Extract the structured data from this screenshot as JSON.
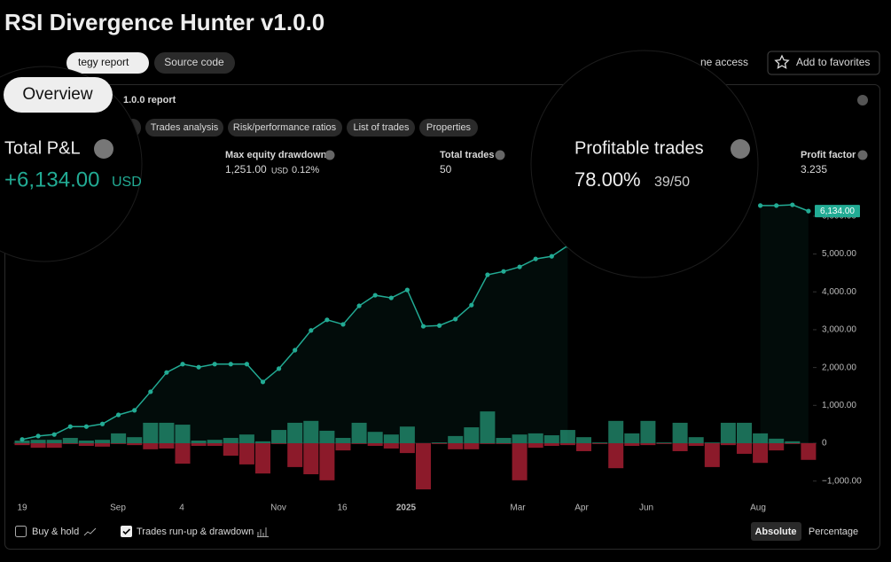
{
  "header": {
    "title": "RSI Divergence Hunter v1.0.0",
    "tabs": [
      "tegy report",
      "Source code"
    ],
    "access": "ne access",
    "favorite": "Add to favorites"
  },
  "report": {
    "overview": "Overview",
    "title": "1.0.0 report",
    "tabs": [
      "Trades analysis",
      "Risk/performance ratios",
      "List of trades",
      "Properties"
    ]
  },
  "metrics": {
    "total_pnl": {
      "label": "Total P&L",
      "value": "+6,134.00",
      "unit": "USD"
    },
    "drawdown": {
      "label": "Max equity drawdown",
      "value": "1,251.00",
      "unit": "USD",
      "percent": "0.12%"
    },
    "trades": {
      "label": "Total trades",
      "value": "50"
    },
    "profitable": {
      "label": "Profitable trades",
      "value": "78.00%",
      "ratio": "39/50"
    },
    "profit_factor": {
      "label": "Profit factor",
      "value": "3.235"
    }
  },
  "chart_data": {
    "type": "line",
    "ylim": [
      -1300,
      6500
    ],
    "yticks": [
      {
        "value": -1000,
        "label": "−1,000.00"
      },
      0,
      {
        "value": 1000,
        "label": "1,000.00"
      },
      {
        "value": 2000,
        "label": "2,000.00"
      },
      {
        "value": 3000,
        "label": "3,000.00"
      },
      {
        "value": 4000,
        "label": "4,000.00"
      },
      {
        "value": 5000,
        "label": "5,000.00"
      },
      {
        "value": 6000,
        "label": "6,000.00"
      }
    ],
    "x_labels": [
      "19",
      "Sep",
      "4",
      "Nov",
      "16",
      "2025",
      "Mar",
      "Apr",
      "Jun",
      "Aug"
    ],
    "equity": {
      "color": "#22ab94",
      "values": [
        100,
        190,
        230,
        440,
        440,
        510,
        750,
        870,
        1360,
        1870,
        2090,
        2010,
        2090,
        2090,
        2090,
        1620,
        1970,
        2460,
        2980,
        3260,
        3140,
        3630,
        3910,
        3840,
        4050,
        3090,
        3110,
        3280,
        3650,
        4450,
        4540,
        4660,
        4870,
        4940,
        5220,
        null,
        null,
        null,
        null,
        null,
        null,
        null,
        null,
        null,
        null,
        null,
        6280,
        6280,
        6300,
        6134
      ]
    },
    "runup": {
      "color": "#1b6e57",
      "values": [
        70,
        90,
        90,
        140,
        70,
        90,
        260,
        160,
        540,
        540,
        490,
        70,
        90,
        140,
        230,
        50,
        350,
        540,
        590,
        330,
        140,
        540,
        300,
        230,
        440,
        0,
        20,
        190,
        420,
        840,
        140,
        230,
        260,
        210,
        350,
        160,
        20,
        590,
        260,
        590,
        20,
        540,
        160,
        20,
        540,
        540,
        260,
        120,
        50,
        0
      ]
    },
    "drawdown": {
      "color": "#8c1a2a",
      "values": [
        -50,
        -120,
        -120,
        -20,
        -70,
        -90,
        -20,
        -50,
        -160,
        -140,
        -540,
        -70,
        -70,
        -330,
        -560,
        -800,
        -20,
        -630,
        -820,
        -980,
        -190,
        -20,
        -70,
        -140,
        -260,
        -1220,
        -20,
        -160,
        -160,
        -20,
        -20,
        -980,
        -120,
        -70,
        -50,
        -210,
        -20,
        -660,
        -70,
        -50,
        -20,
        -210,
        -70,
        -630,
        -50,
        -280,
        -520,
        -190,
        -20,
        -440
      ]
    },
    "marker": {
      "value": 6134,
      "label": "6,134.00"
    }
  },
  "legend": {
    "buy_hold": "Buy & hold",
    "runup": "Trades run-up & drawdown",
    "absolute": "Absolute",
    "percentage": "Percentage"
  }
}
